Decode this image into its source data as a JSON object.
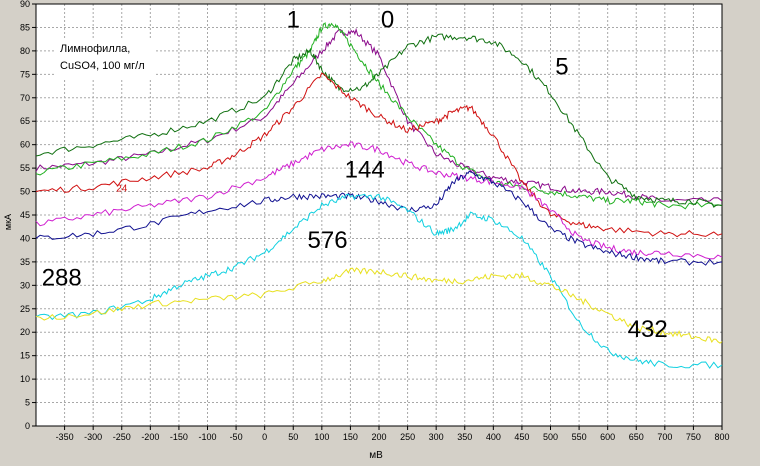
{
  "chart_data": {
    "type": "line",
    "xlabel": "мВ",
    "ylabel": "мкА",
    "xlim": [
      -400,
      800
    ],
    "ylim": [
      0,
      90
    ],
    "x_ticks": [
      -350,
      -300,
      -250,
      -200,
      -150,
      -100,
      -50,
      0,
      50,
      100,
      150,
      200,
      250,
      300,
      350,
      400,
      450,
      500,
      550,
      600,
      650,
      700,
      750,
      800
    ],
    "y_ticks": [
      0,
      5,
      10,
      15,
      20,
      25,
      30,
      35,
      40,
      45,
      50,
      55,
      60,
      65,
      70,
      75,
      80,
      85,
      90
    ],
    "grid": true,
    "legend_text": [
      "Лимнофилла,",
      "CuSO4, 100 мг/л"
    ],
    "series": [
      {
        "name": "0",
        "color": "#8b0a8b",
        "x": [
          -400,
          -300,
          -200,
          -100,
          0,
          50,
          100,
          130,
          160,
          200,
          250,
          300,
          350,
          400,
          450,
          500,
          550,
          600,
          650,
          700,
          800
        ],
        "y": [
          55,
          56,
          58,
          61,
          66,
          73,
          80,
          84,
          84,
          79,
          65,
          58,
          55,
          53,
          52,
          51,
          50,
          50,
          49,
          48,
          48
        ]
      },
      {
        "name": "1",
        "color": "#22b022",
        "x": [
          -400,
          -300,
          -200,
          -100,
          0,
          50,
          80,
          100,
          120,
          140,
          170,
          200,
          250,
          300,
          350,
          400,
          450,
          500,
          550,
          600,
          650,
          700,
          800
        ],
        "y": [
          54,
          56,
          58,
          61,
          67,
          76,
          80,
          85,
          86,
          83,
          78,
          73,
          66,
          60,
          55,
          52,
          51,
          50,
          49,
          48,
          48,
          47,
          47
        ]
      },
      {
        "name": "5",
        "color": "#107010",
        "x": [
          -400,
          -300,
          -200,
          -100,
          0,
          50,
          80,
          100,
          130,
          170,
          200,
          250,
          300,
          350,
          400,
          450,
          500,
          550,
          600,
          650,
          700,
          750,
          800
        ],
        "y": [
          58,
          60,
          62,
          65,
          70,
          78,
          80,
          76,
          72,
          72,
          75,
          81,
          83,
          83,
          82,
          78,
          71,
          62,
          53,
          49,
          48,
          48,
          47
        ]
      },
      {
        "name": "24",
        "color": "#d01010",
        "x": [
          -400,
          -300,
          -200,
          -100,
          -50,
          0,
          50,
          100,
          150,
          200,
          250,
          300,
          330,
          360,
          400,
          450,
          500,
          550,
          600,
          700,
          800
        ],
        "y": [
          50,
          51,
          53,
          55,
          58,
          62,
          68,
          75,
          70,
          66,
          63,
          65,
          67,
          68,
          62,
          52,
          45,
          43,
          42,
          41,
          41
        ]
      },
      {
        "name": "144",
        "color": "#d020d0",
        "x": [
          -400,
          -300,
          -200,
          -100,
          0,
          50,
          100,
          150,
          200,
          250,
          300,
          350,
          400,
          450,
          500,
          550,
          600,
          650,
          700,
          800
        ],
        "y": [
          43,
          45,
          47,
          49,
          53,
          56,
          59,
          60,
          59,
          56,
          54,
          53,
          52,
          51,
          46,
          40,
          38,
          37,
          37,
          36
        ]
      },
      {
        "name": "288",
        "color": "#101090",
        "x": [
          -400,
          -300,
          -200,
          -100,
          0,
          50,
          100,
          150,
          200,
          250,
          300,
          330,
          360,
          400,
          450,
          500,
          550,
          600,
          650,
          700,
          800
        ],
        "y": [
          40,
          41,
          43,
          46,
          48,
          49,
          49,
          49,
          48,
          46,
          47,
          52,
          54,
          52,
          48,
          42,
          39,
          37,
          36,
          35,
          35
        ]
      },
      {
        "name": "576",
        "color": "#10d0e0",
        "x": [
          -400,
          -300,
          -200,
          -150,
          -100,
          -50,
          0,
          50,
          100,
          150,
          200,
          250,
          300,
          330,
          360,
          400,
          450,
          500,
          550,
          600,
          650,
          700,
          800
        ],
        "y": [
          23,
          24,
          27,
          30,
          32,
          34,
          37,
          42,
          47,
          49,
          49,
          46,
          41,
          42,
          45,
          44,
          40,
          32,
          22,
          16,
          14,
          13,
          13
        ]
      },
      {
        "name": "432",
        "color": "#e8e020",
        "x": [
          -400,
          -300,
          -200,
          -100,
          0,
          100,
          150,
          200,
          250,
          300,
          350,
          400,
          450,
          500,
          550,
          600,
          650,
          700,
          750,
          800
        ],
        "y": [
          23,
          24,
          26,
          27,
          28,
          31,
          33,
          33,
          32,
          31,
          31,
          32,
          32,
          30,
          27,
          24,
          21,
          20,
          19,
          18
        ]
      }
    ],
    "annotations": [
      {
        "text": "1",
        "x": 50,
        "y": 85,
        "color": "#000000",
        "size": "large"
      },
      {
        "text": "0",
        "x": 215,
        "y": 85,
        "color": "#000000",
        "size": "large"
      },
      {
        "text": "5",
        "x": 520,
        "y": 75,
        "color": "#000000",
        "size": "large"
      },
      {
        "text": "24",
        "x": -250,
        "y": 50,
        "color": "#d01010",
        "size": "small"
      },
      {
        "text": "144",
        "x": 175,
        "y": 53,
        "color": "#000000",
        "size": "large"
      },
      {
        "text": "576",
        "x": 110,
        "y": 38,
        "color": "#000000",
        "size": "large"
      },
      {
        "text": "288",
        "x": -355,
        "y": 30,
        "color": "#000000",
        "size": "large"
      },
      {
        "text": "432",
        "x": 670,
        "y": 19,
        "color": "#000000",
        "size": "large"
      }
    ]
  }
}
